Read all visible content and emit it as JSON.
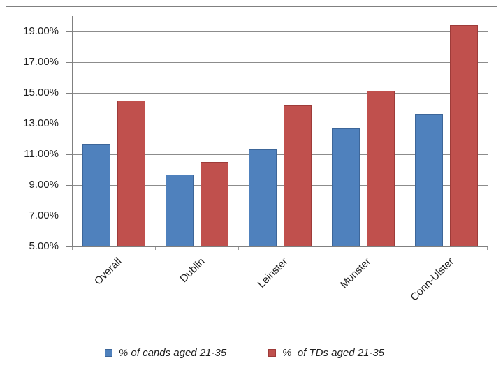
{
  "chart_data": {
    "type": "bar",
    "title": "",
    "categories": [
      "Overall",
      "Dublin",
      "Leinster",
      "Munster",
      "Conn-Ulster"
    ],
    "series": [
      {
        "name": "% of cands aged 21-35",
        "color": "#4F81BD",
        "border_color": "#3D6699",
        "values": [
          11.7,
          9.7,
          11.3,
          12.7,
          13.6
        ]
      },
      {
        "name": "%  of TDs aged 21-35",
        "color": "#C0504D",
        "border_color": "#9E3B39",
        "values": [
          14.5,
          10.5,
          14.2,
          15.15,
          19.4
        ]
      }
    ],
    "xlabel": "",
    "ylabel": "",
    "ylim": [
      5,
      20
    ],
    "ytick_step": 2,
    "ytick_labels": [
      "19.00%",
      "17.00%",
      "15.00%",
      "13.00%",
      "11.00%",
      "9.00%",
      "7.00%",
      "5.00%"
    ],
    "ytick_values": [
      19,
      17,
      15,
      13,
      11,
      9,
      7,
      5
    ],
    "grid": true,
    "legend_position": "bottom"
  },
  "style": {
    "gridline_color": "#8c8c8c",
    "axis_color": "#808080",
    "frame_color": "#808080",
    "text_color": "#1f1f1f",
    "background_color": "#ffffff"
  }
}
